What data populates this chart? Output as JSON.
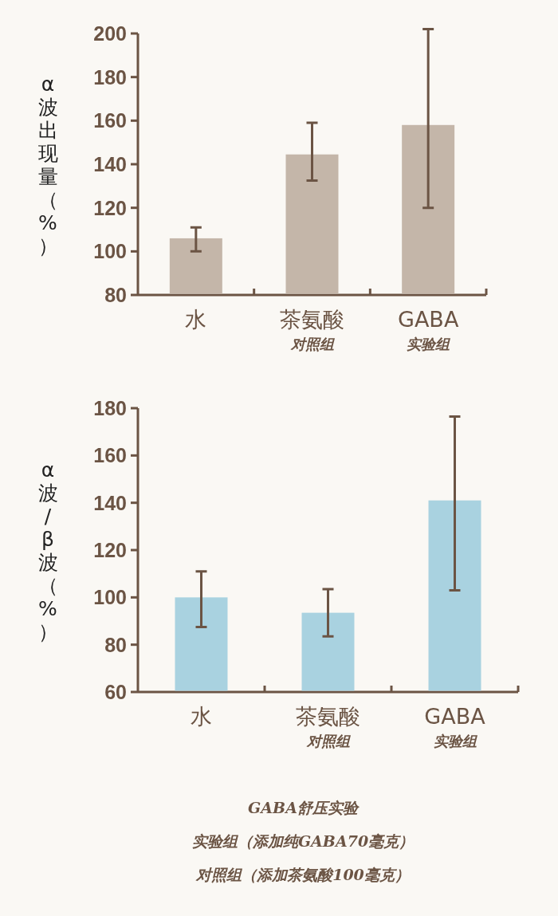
{
  "chart_data": [
    {
      "type": "bar",
      "ylabel": "α波出现量（%）",
      "categories": [
        "水",
        "茶氨酸",
        "GABA"
      ],
      "values": [
        106,
        144.5,
        158
      ],
      "errors": [
        [
          100,
          111
        ],
        [
          132.5,
          159
        ],
        [
          120,
          202
        ]
      ],
      "color": "#c4b6a9",
      "ylim": [
        80,
        200
      ],
      "yticks": [
        80,
        100,
        120,
        140,
        160,
        180,
        200
      ],
      "annotations": [
        "对照组",
        "实验组"
      ]
    },
    {
      "type": "bar",
      "ylabel": "α波/β波（%）",
      "categories": [
        "水",
        "茶氨酸",
        "GABA"
      ],
      "values": [
        100,
        93.5,
        141
      ],
      "errors": [
        [
          87.5,
          111
        ],
        [
          83.5,
          103.5
        ],
        [
          103,
          176.5
        ]
      ],
      "color": "#a9d2e0",
      "ylim": [
        60,
        180
      ],
      "yticks": [
        60,
        80,
        100,
        120,
        140,
        160,
        180
      ],
      "annotations": [
        "对照组",
        "实验组",
        "GABA舒压实验",
        "实验组（添加纯GABA70毫克）",
        "对照组（添加茶氨酸100毫克）"
      ]
    }
  ]
}
